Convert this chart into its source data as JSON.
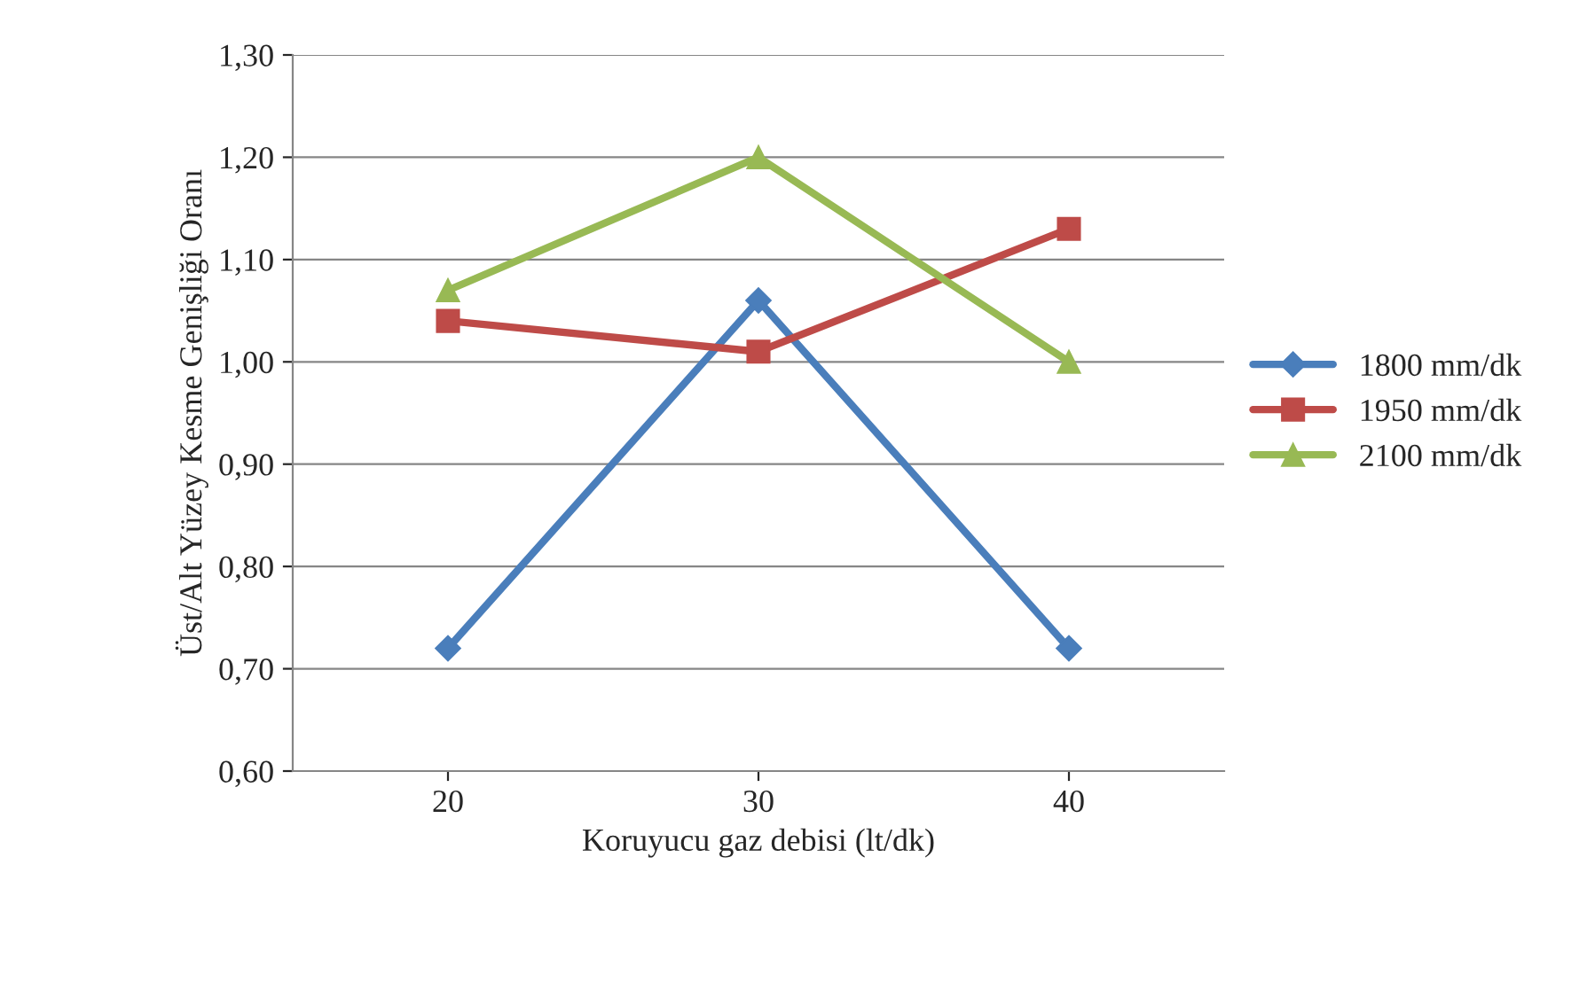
{
  "chart_data": {
    "type": "line",
    "xlabel": "Koruyucu gaz debisi (lt/dk)",
    "ylabel": "Üst/Alt Yüzey Kesme Genişliği Oranı",
    "categories": [
      "20",
      "30",
      "40"
    ],
    "series": [
      {
        "name": "1800 mm/dk",
        "color": "#4a7ebb",
        "marker": "diamond",
        "values": [
          0.72,
          1.06,
          0.72
        ]
      },
      {
        "name": "1950 mm/dk",
        "color": "#be4b48",
        "marker": "square",
        "values": [
          1.04,
          1.01,
          1.13
        ]
      },
      {
        "name": "2100 mm/dk",
        "color": "#98b954",
        "marker": "triangle",
        "values": [
          1.07,
          1.2,
          1.0
        ]
      }
    ],
    "ylim": [
      0.6,
      1.3
    ],
    "yticks": [
      {
        "value": 0.6,
        "label": "0,60"
      },
      {
        "value": 0.7,
        "label": "0,70"
      },
      {
        "value": 0.8,
        "label": "0,80"
      },
      {
        "value": 0.9,
        "label": "0,90"
      },
      {
        "value": 1.0,
        "label": "1,00"
      },
      {
        "value": 1.1,
        "label": "1,10"
      },
      {
        "value": 1.2,
        "label": "1,20"
      },
      {
        "value": 1.3,
        "label": "1,30"
      }
    ],
    "grid": "y",
    "legend": "right"
  }
}
